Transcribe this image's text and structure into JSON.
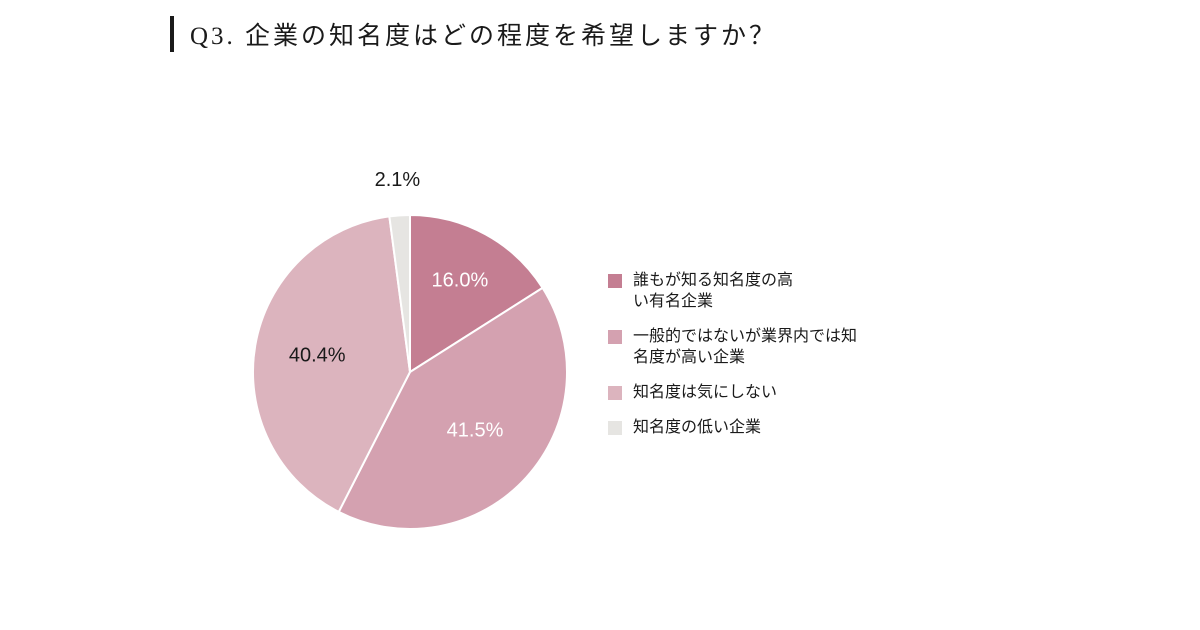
{
  "title": {
    "text": "Q3. 企業の知名度はどの程度を希望しますか？"
  },
  "chart_data": {
    "type": "pie",
    "title": "Q3. 企業の知名度はどの程度を希望しますか？",
    "start_angle_deg": 0,
    "direction": "clockwise",
    "legend_position": "right",
    "slices": [
      {
        "label": "誰もが知る知名度の高い有名企業",
        "value": 16.0,
        "display": "16.0%",
        "color": "#c47e92",
        "label_color": "#ffffff"
      },
      {
        "label": "一般的ではないが業界内では知名度が高い企業",
        "value": 41.5,
        "display": "41.5%",
        "color": "#d4a1b0",
        "label_color": "#ffffff"
      },
      {
        "label": "知名度は気にしない",
        "value": 40.4,
        "display": "40.4%",
        "color": "#dcb4be",
        "label_color": "#1a1a1a"
      },
      {
        "label": "知名度の低い企業",
        "value": 2.1,
        "display": "2.1%",
        "color": "#e6e5e2",
        "label_color": "#1a1a1a"
      }
    ],
    "legend": [
      {
        "color": "#c47e92",
        "text": "誰もが知る知名度の高い有名企業",
        "lines": [
          "誰もが知る知名度の高",
          "い有名企業"
        ]
      },
      {
        "color": "#d4a1b0",
        "text": "一般的ではないが業界内では知名度が高い企業",
        "lines": [
          "一般的ではないが業界内では知",
          "名度が高い企業"
        ]
      },
      {
        "color": "#dcb4be",
        "text": "知名度は気にしない",
        "lines": [
          "知名度は気にしない"
        ]
      },
      {
        "color": "#e6e5e2",
        "text": "知名度の低い企業",
        "lines": [
          "知名度の低い企業"
        ]
      }
    ]
  }
}
